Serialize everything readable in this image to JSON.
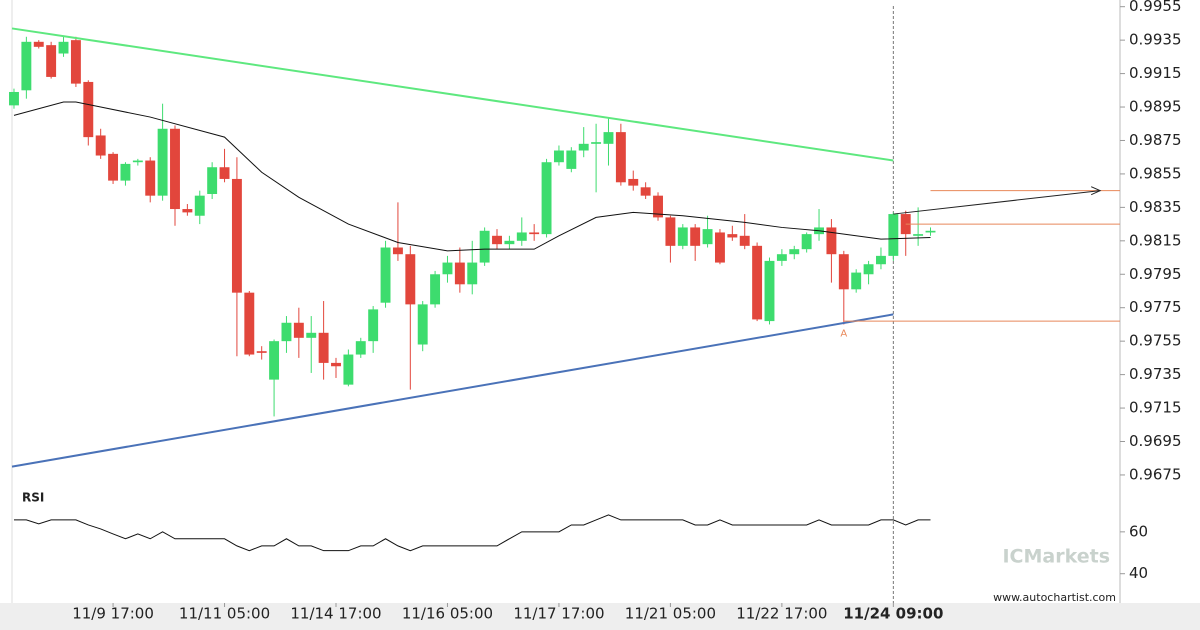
{
  "chart_data": [
    {
      "type": "candlestick",
      "up_color": "#3ddc6e",
      "down_color": "#e2463c",
      "open": [
        0.9896,
        0.9905,
        0.9934,
        0.9932,
        0.9927,
        0.9935,
        0.991,
        0.9878,
        0.9867,
        0.9851,
        0.9862,
        0.9863,
        0.9842,
        0.9882,
        0.9834,
        0.983,
        0.9843,
        0.9859,
        0.9852,
        0.9784,
        0.9749,
        0.9732,
        0.9755,
        0.9766,
        0.9757,
        0.976,
        0.9742,
        0.9729,
        0.9747,
        0.9755,
        0.9778,
        0.9811,
        0.9807,
        0.9753,
        0.9777,
        0.9795,
        0.9802,
        0.9789,
        0.9802,
        0.9818,
        0.9813,
        0.9815,
        0.982,
        0.9819,
        0.9862,
        0.9858,
        0.9869,
        0.9873,
        0.9873,
        0.988,
        0.9852,
        0.9847,
        0.9842,
        0.9829,
        0.9812,
        0.9823,
        0.9813,
        0.982,
        0.9819,
        0.9818,
        0.9812,
        0.9767,
        0.9803,
        0.9807,
        0.981,
        0.9819,
        0.9823,
        0.9807,
        0.9786,
        0.9795,
        0.9801,
        0.9806,
        0.9831,
        0.9818,
        0.982
      ],
      "high": [
        0.9906,
        0.9937,
        0.9935,
        0.9934,
        0.9937,
        0.9937,
        0.9911,
        0.9882,
        0.9868,
        0.9862,
        0.9864,
        0.9865,
        0.9897,
        0.9884,
        0.9837,
        0.9845,
        0.9862,
        0.987,
        0.9865,
        0.9785,
        0.9752,
        0.9756,
        0.977,
        0.9775,
        0.977,
        0.9779,
        0.9745,
        0.975,
        0.9757,
        0.9776,
        0.9815,
        0.9838,
        0.9812,
        0.9779,
        0.9797,
        0.9806,
        0.9811,
        0.9815,
        0.9823,
        0.9822,
        0.9818,
        0.9829,
        0.9825,
        0.9864,
        0.9872,
        0.9871,
        0.9883,
        0.9885,
        0.9889,
        0.9885,
        0.9857,
        0.985,
        0.9844,
        0.983,
        0.9825,
        0.9825,
        0.983,
        0.9822,
        0.9824,
        0.9831,
        0.9814,
        0.9805,
        0.981,
        0.9812,
        0.982,
        0.9834,
        0.9828,
        0.9809,
        0.9798,
        0.9803,
        0.9811,
        0.9832,
        0.9833,
        0.9835,
        0.9823
      ],
      "low": [
        0.9894,
        0.99,
        0.993,
        0.9912,
        0.9925,
        0.9907,
        0.9872,
        0.9864,
        0.9849,
        0.9848,
        0.986,
        0.9838,
        0.9839,
        0.9824,
        0.983,
        0.9825,
        0.984,
        0.985,
        0.9746,
        0.9746,
        0.9744,
        0.971,
        0.9748,
        0.9745,
        0.9736,
        0.9732,
        0.9733,
        0.9728,
        0.9745,
        0.9748,
        0.9775,
        0.9803,
        0.9726,
        0.9749,
        0.9775,
        0.979,
        0.9784,
        0.9783,
        0.98,
        0.981,
        0.981,
        0.9812,
        0.9815,
        0.9817,
        0.986,
        0.9856,
        0.9865,
        0.9844,
        0.986,
        0.9848,
        0.9845,
        0.984,
        0.9827,
        0.9802,
        0.981,
        0.9803,
        0.9811,
        0.9801,
        0.9815,
        0.981,
        0.9767,
        0.9765,
        0.98,
        0.9804,
        0.9808,
        0.9815,
        0.979,
        0.9765,
        0.9784,
        0.9789,
        0.9798,
        0.9803,
        0.9806,
        0.9812,
        0.9818
      ],
      "close": [
        0.9904,
        0.9934,
        0.9931,
        0.9913,
        0.9934,
        0.9909,
        0.9877,
        0.9866,
        0.9851,
        0.9861,
        0.9863,
        0.9842,
        0.9882,
        0.9834,
        0.9832,
        0.9842,
        0.9859,
        0.9852,
        0.9784,
        0.9747,
        0.9748,
        0.9755,
        0.9766,
        0.9757,
        0.976,
        0.9742,
        0.974,
        0.9747,
        0.9755,
        0.9774,
        0.9811,
        0.9807,
        0.9777,
        0.9777,
        0.9795,
        0.9802,
        0.9789,
        0.9802,
        0.9821,
        0.9813,
        0.9815,
        0.982,
        0.9819,
        0.9862,
        0.9869,
        0.9869,
        0.9873,
        0.9874,
        0.988,
        0.985,
        0.9848,
        0.9842,
        0.9829,
        0.9812,
        0.9823,
        0.9812,
        0.9822,
        0.9802,
        0.9817,
        0.9812,
        0.9768,
        0.9803,
        0.9807,
        0.981,
        0.9819,
        0.9823,
        0.9807,
        0.9786,
        0.9796,
        0.9801,
        0.9806,
        0.9831,
        0.9819,
        0.9819,
        0.9821
      ],
      "moving_average": {
        "color": "#111111",
        "x": [
          0,
          4,
          5,
          7,
          11,
          17,
          20,
          23,
          27,
          31,
          35,
          38,
          42,
          44,
          47,
          50,
          54,
          59,
          62,
          65,
          70,
          74
        ],
        "values": [
          0.989,
          0.9898,
          0.9898,
          0.9895,
          0.9889,
          0.9877,
          0.9856,
          0.9841,
          0.9825,
          0.9814,
          0.9809,
          0.981,
          0.981,
          0.9818,
          0.9829,
          0.9832,
          0.983,
          0.9826,
          0.9823,
          0.9821,
          0.9816,
          0.9817
        ]
      },
      "trendlines": [
        {
          "color": "#5ee87f",
          "x": [
            -0.16,
            71
          ],
          "values": [
            0.9942,
            0.9863
          ]
        },
        {
          "color": "#4a72b8",
          "x": [
            -0.16,
            71
          ],
          "values": [
            0.968,
            0.9771
          ]
        }
      ],
      "projection": {
        "color": "#222222",
        "x": [
          71,
          87.7
        ],
        "values": [
          0.9831,
          0.9845
        ]
      },
      "levels": [
        {
          "color": "#e8885a",
          "x": [
            74,
            89.3
          ],
          "values": [
            0.9845,
            0.9845
          ]
        },
        {
          "color": "#e8885a",
          "x": [
            72,
            89.3
          ],
          "values": [
            0.9825,
            0.9825
          ]
        },
        {
          "color": "#e8885a",
          "x": [
            67,
            89.3
          ],
          "values": [
            0.9767,
            0.9767
          ]
        }
      ],
      "annotation": {
        "text": "A",
        "x": 67,
        "value": 0.9765,
        "color": "#e8885a"
      },
      "cursor_x": 71,
      "xlim": [
        -0.16,
        89.3
      ],
      "ylim": [
        0.9666,
        0.9959
      ],
      "yticks": [
        0.9675,
        0.9695,
        0.9715,
        0.9735,
        0.9755,
        0.9775,
        0.9795,
        0.9815,
        0.9835,
        0.9855,
        0.9875,
        0.9895,
        0.9915,
        0.9935,
        0.9955
      ],
      "xticks": [
        {
          "value": 8,
          "label": "11/9 17:00"
        },
        {
          "value": 17,
          "label": "11/11 05:00"
        },
        {
          "value": 26,
          "label": "11/14 17:00"
        },
        {
          "value": 35,
          "label": "11/16 05:00"
        },
        {
          "value": 44,
          "label": "11/17 17:00"
        },
        {
          "value": 53,
          "label": "11/21 05:00"
        },
        {
          "value": 62,
          "label": "11/22 17:00"
        },
        {
          "value": 71,
          "label": "11/24 09:00"
        }
      ]
    },
    {
      "type": "line",
      "title": "RSI",
      "color": "#111111",
      "values": [
        65.7,
        65.7,
        63.8,
        65.7,
        65.7,
        65.7,
        63.3,
        61.4,
        59,
        56.7,
        59,
        56.7,
        60,
        56.7,
        56.7,
        56.7,
        56.7,
        56.7,
        53.3,
        51,
        53.3,
        53.3,
        56.7,
        53.3,
        53.3,
        51,
        51,
        51,
        53.3,
        53.3,
        56.7,
        53.3,
        51,
        53.3,
        53.3,
        53.3,
        53.3,
        53.3,
        53.3,
        53.3,
        56.7,
        60,
        60,
        60,
        60,
        63.3,
        63.3,
        65.7,
        68.1,
        65.7,
        65.7,
        65.7,
        65.7,
        65.7,
        65.7,
        63.3,
        63.3,
        65.7,
        63.3,
        63.3,
        63.3,
        63.3,
        63.3,
        63.3,
        63.3,
        65.7,
        63.3,
        63.3,
        63.3,
        63.3,
        65.7,
        65.7,
        63.3,
        65.7,
        65.7
      ],
      "ylim": [
        26,
        80
      ],
      "yticks": [
        40,
        60
      ]
    }
  ],
  "watermark": "ICMarkets",
  "source": "www.autochartist.com"
}
